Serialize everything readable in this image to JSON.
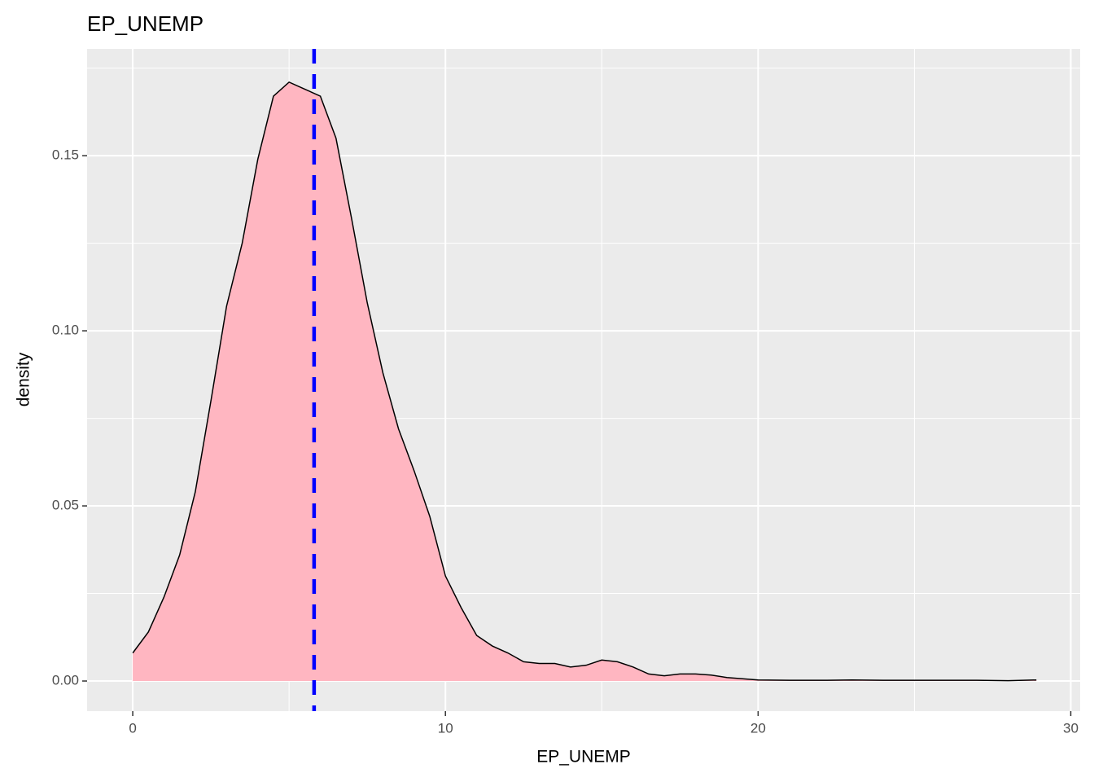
{
  "chart_data": {
    "type": "density",
    "title": "EP_UNEMP",
    "x_label": "EP_UNEMP",
    "y_label": "density",
    "fill": "#ffb6c1",
    "stroke": "#000000",
    "x": [
      0,
      0.5,
      1,
      1.5,
      2,
      2.5,
      3,
      3.5,
      4,
      4.5,
      5,
      5.5,
      6,
      6.5,
      7,
      7.5,
      8,
      8.5,
      9,
      9.5,
      10,
      10.5,
      11,
      11.5,
      12,
      12.5,
      13,
      13.5,
      14,
      14.5,
      15,
      15.5,
      16,
      16.5,
      17,
      17.5,
      18,
      18.5,
      19,
      20,
      21,
      22,
      23,
      24,
      25,
      26,
      27,
      28,
      28.9
    ],
    "values": [
      0.008,
      0.014,
      0.024,
      0.036,
      0.054,
      0.08,
      0.107,
      0.125,
      0.149,
      0.167,
      0.171,
      0.169,
      0.167,
      0.155,
      0.132,
      0.108,
      0.088,
      0.072,
      0.06,
      0.047,
      0.03,
      0.021,
      0.013,
      0.01,
      0.008,
      0.0055,
      0.005,
      0.005,
      0.004,
      0.0045,
      0.006,
      0.0055,
      0.004,
      0.002,
      0.0015,
      0.002,
      0.002,
      0.0017,
      0.001,
      0.0003,
      0.0002,
      0.0002,
      0.0003,
      0.0002,
      0.0002,
      0.0002,
      0.0002,
      0.0001,
      0.0003
    ],
    "vline": {
      "value": 5.8,
      "color": "#0000ff",
      "dashed": true
    },
    "xlim": [
      -1.46,
      30.3
    ],
    "ylim": [
      -0.0086,
      0.1805
    ],
    "xticks": [
      0,
      10,
      20,
      30
    ],
    "yticks": [
      {
        "value": 0,
        "label": "0.00"
      },
      0.05,
      {
        "value": 0.1,
        "label": "0.10"
      },
      0.15
    ],
    "grid": true,
    "minor_grid": true
  }
}
